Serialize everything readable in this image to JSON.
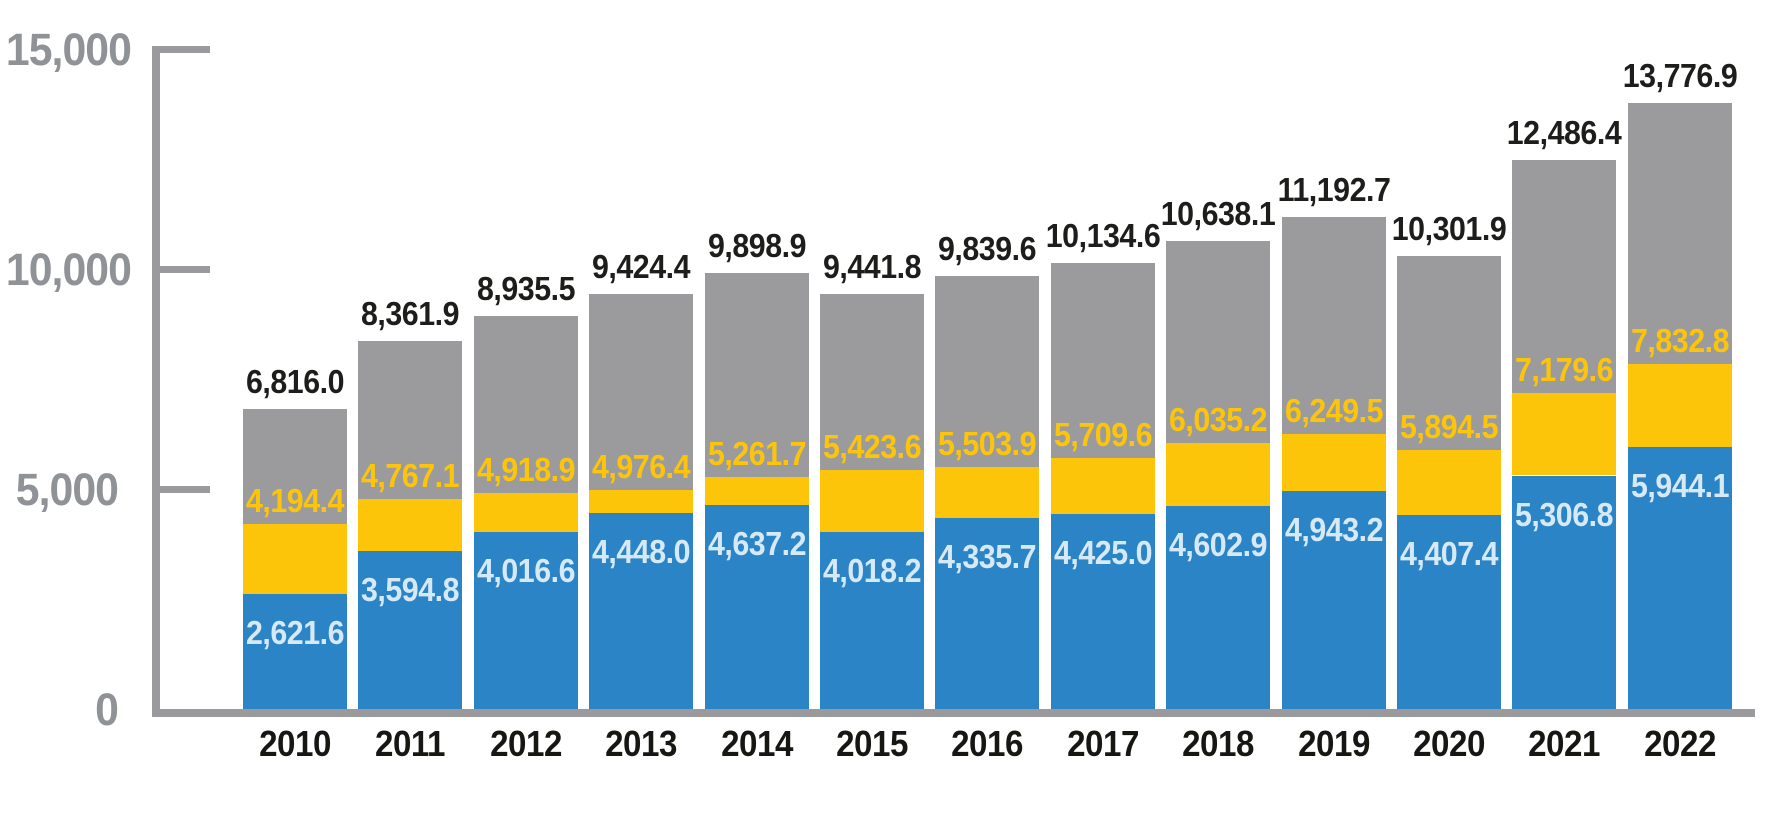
{
  "page": {
    "background_color": "#ffffff",
    "title": "",
    "legend_visible": false
  },
  "chart_data": {
    "type": "bar",
    "subtype": "stacked",
    "orientation": "vertical",
    "categories": [
      "2010",
      "2011",
      "2012",
      "2013",
      "2014",
      "2015",
      "2016",
      "2017",
      "2018",
      "2019",
      "2020",
      "2021",
      "2022"
    ],
    "series": [
      {
        "name": "blue-bottom-segment",
        "color": "#2b84c6",
        "label_text_color": "#d6e9f7",
        "label_position": "inside-top-of-blue",
        "values": [
          2621.6,
          3594.8,
          4016.6,
          4448.0,
          4637.2,
          4018.2,
          4335.7,
          4425.0,
          4602.9,
          4943.2,
          4407.4,
          5306.8,
          5944.1
        ]
      },
      {
        "name": "yellow-mid-level",
        "color": "#fdc509",
        "label_text_color": "#fdc50a",
        "label_position": "above-yellow-band-top",
        "note": "value equals cumulative stack height at top of yellow band",
        "values": [
          4194.4,
          4767.1,
          4918.9,
          4976.4,
          5261.7,
          5423.6,
          5503.9,
          5709.6,
          6035.2,
          6249.5,
          5894.5,
          7179.6,
          7832.8
        ]
      },
      {
        "name": "gray-top-total",
        "color": "#9b9b9d",
        "label_text_color": "#1d1d1b",
        "label_position": "above-bar",
        "note": "value equals total bar height (top of gray segment)",
        "values": [
          6816.0,
          8361.9,
          8935.5,
          9424.4,
          9898.9,
          9441.8,
          9839.6,
          10134.6,
          10638.1,
          11192.7,
          10301.9,
          12486.4,
          13776.9
        ]
      }
    ],
    "ylim": [
      0,
      15000
    ],
    "y_ticks": [
      {
        "value": 15000,
        "label": "15,000"
      },
      {
        "value": 10000,
        "label": "10,000"
      },
      {
        "value": 5000,
        "label": "5,000"
      },
      {
        "value": 0,
        "label": "0"
      }
    ],
    "axis_color": "#9a9a9c",
    "y_tick_label_color": "#8f9296",
    "x_tick_label_color": "#161613",
    "grid": false,
    "legend_position": "none"
  }
}
